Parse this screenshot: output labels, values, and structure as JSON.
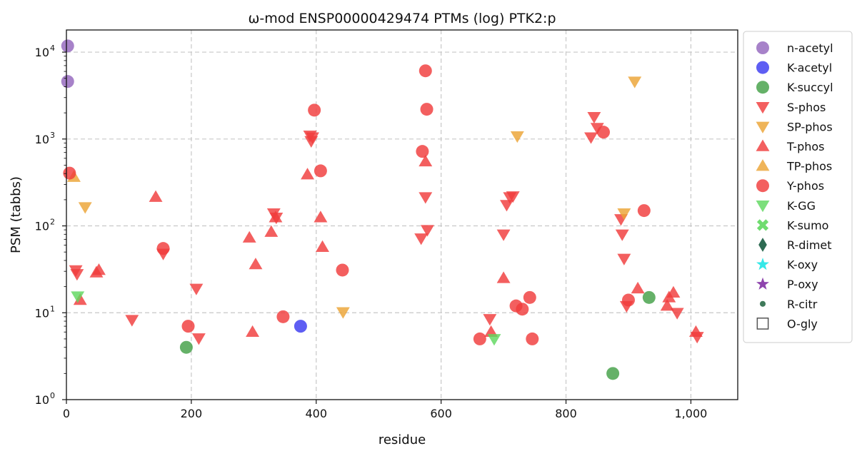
{
  "chart_data": {
    "type": "scatter",
    "title": "ω-mod ENSP00000429474 PTMs (log) PTK2:p",
    "xlabel": "residue",
    "ylabel": "PSM (tabbs)",
    "xlim": [
      0,
      1075
    ],
    "ylim": [
      1,
      18000
    ],
    "yscale": "log",
    "grid": true,
    "legend_position": "outside-right",
    "x_ticks": [
      {
        "value": 0,
        "label": "0"
      },
      {
        "value": 200,
        "label": "200"
      },
      {
        "value": 400,
        "label": "400"
      },
      {
        "value": 600,
        "label": "600"
      },
      {
        "value": 800,
        "label": "800"
      },
      {
        "value": 1000,
        "label": "1,000"
      }
    ],
    "y_ticks": [
      {
        "value": 1,
        "base": "10",
        "exp": "0"
      },
      {
        "value": 10,
        "base": "10",
        "exp": "1"
      },
      {
        "value": 100,
        "base": "10",
        "exp": "2"
      },
      {
        "value": 1000,
        "base": "10",
        "exp": "3"
      },
      {
        "value": 10000,
        "base": "10",
        "exp": "4"
      }
    ],
    "series": [
      {
        "name": "n-acetyl",
        "marker": "circle",
        "color": "#9467bd",
        "points": [
          [
            2,
            11800
          ],
          [
            2,
            4600
          ]
        ]
      },
      {
        "name": "K-acetyl",
        "marker": "circle",
        "color": "#3a3af0",
        "points": [
          [
            375,
            7
          ]
        ]
      },
      {
        "name": "K-succyl",
        "marker": "circle",
        "color": "#43a047",
        "points": [
          [
            192,
            4
          ],
          [
            875,
            2
          ],
          [
            933,
            15
          ]
        ]
      },
      {
        "name": "S-phos",
        "marker": "triangle-down",
        "color": "#f03c3c",
        "points": [
          [
            15,
            31
          ],
          [
            17,
            28
          ],
          [
            105,
            8.3
          ],
          [
            155,
            48
          ],
          [
            208,
            19
          ],
          [
            212,
            5.1
          ],
          [
            332,
            140
          ],
          [
            336,
            125
          ],
          [
            390,
            1100
          ],
          [
            392,
            950
          ],
          [
            394,
            1050
          ],
          [
            568,
            72
          ],
          [
            575,
            215
          ],
          [
            578,
            90
          ],
          [
            678,
            8.5
          ],
          [
            700,
            80
          ],
          [
            705,
            175
          ],
          [
            710,
            215
          ],
          [
            715,
            220
          ],
          [
            840,
            1050
          ],
          [
            845,
            1800
          ],
          [
            850,
            1350
          ],
          [
            888,
            120
          ],
          [
            890,
            80
          ],
          [
            893,
            42
          ],
          [
            897,
            12
          ],
          [
            978,
            10
          ],
          [
            1010,
            5.3
          ]
        ]
      },
      {
        "name": "SP-phos",
        "marker": "triangle-down",
        "color": "#eba335",
        "points": [
          [
            30,
            165
          ],
          [
            443,
            10.2
          ],
          [
            722,
            1080
          ],
          [
            893,
            140
          ],
          [
            910,
            4600
          ]
        ]
      },
      {
        "name": "T-phos",
        "marker": "triangle-up",
        "color": "#f03c3c",
        "points": [
          [
            22,
            14
          ],
          [
            48,
            29
          ],
          [
            52,
            31
          ],
          [
            143,
            215
          ],
          [
            293,
            73
          ],
          [
            298,
            6
          ],
          [
            303,
            36
          ],
          [
            328,
            85
          ],
          [
            335,
            125
          ],
          [
            386,
            390
          ],
          [
            407,
            125
          ],
          [
            410,
            57
          ],
          [
            575,
            550
          ],
          [
            680,
            6
          ],
          [
            700,
            25
          ],
          [
            915,
            19
          ],
          [
            962,
            12
          ],
          [
            965,
            15
          ],
          [
            972,
            17
          ],
          [
            1008,
            6
          ]
        ]
      },
      {
        "name": "TP-phos",
        "marker": "triangle-up",
        "color": "#eba335",
        "points": [
          [
            12,
            365
          ]
        ]
      },
      {
        "name": "Y-phos",
        "marker": "circle",
        "color": "#f03c3c",
        "points": [
          [
            5,
            405
          ],
          [
            155,
            55
          ],
          [
            195,
            7
          ],
          [
            347,
            9
          ],
          [
            397,
            2150
          ],
          [
            407,
            430
          ],
          [
            442,
            31
          ],
          [
            570,
            720
          ],
          [
            575,
            6100
          ],
          [
            577,
            2200
          ],
          [
            662,
            5
          ],
          [
            720,
            12
          ],
          [
            730,
            11
          ],
          [
            742,
            15
          ],
          [
            746,
            5
          ],
          [
            860,
            1200
          ],
          [
            900,
            14
          ],
          [
            925,
            150
          ]
        ]
      },
      {
        "name": "K-GG",
        "marker": "triangle-down",
        "color": "#5fd85f",
        "points": [
          [
            18,
            15.5
          ],
          [
            685,
            5
          ]
        ]
      },
      {
        "name": "K-sumo",
        "marker": "x",
        "color": "#5fd85f",
        "points": []
      },
      {
        "name": "R-dimet",
        "marker": "diamond",
        "color": "#2e6b53",
        "points": []
      },
      {
        "name": "K-oxy",
        "marker": "star",
        "color": "#35e8e8",
        "points": []
      },
      {
        "name": "P-oxy",
        "marker": "star",
        "color": "#8e44ad",
        "points": []
      },
      {
        "name": "R-citr",
        "marker": "small-circle",
        "color": "#3f7a5a",
        "points": []
      },
      {
        "name": "O-gly",
        "marker": "open-square",
        "color": "#555555",
        "points": []
      }
    ]
  }
}
